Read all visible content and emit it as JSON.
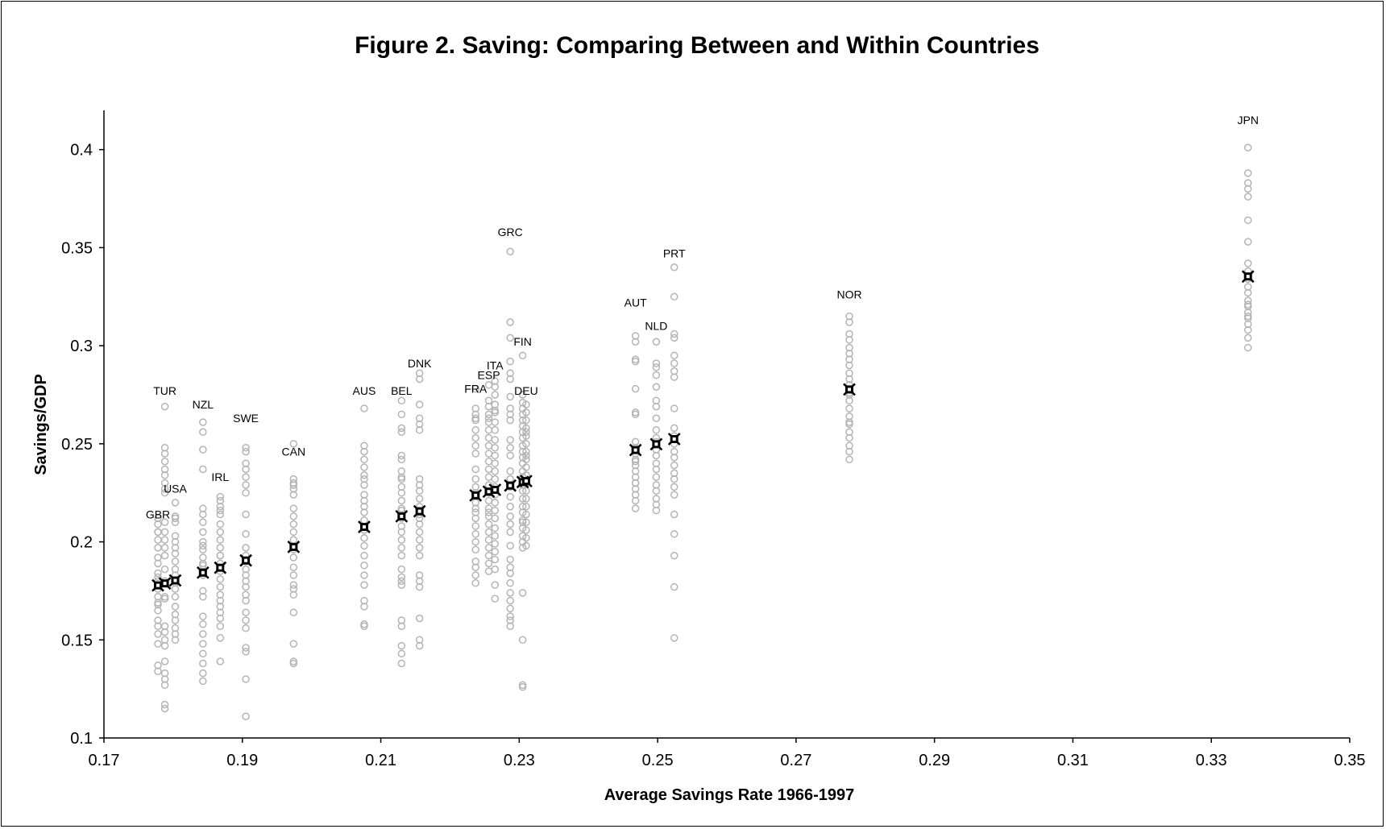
{
  "chart_data": {
    "type": "scatter",
    "title": "Figure 2. Saving: Comparing Between and Within Countries",
    "xlabel": "Average Savings Rate 1966-1997",
    "ylabel": "Savings/GDP",
    "xlim": [
      0.17,
      0.35
    ],
    "ylim": [
      0.1,
      0.42
    ],
    "x_ticks": [
      "0.17",
      "0.19",
      "0.21",
      "0.23",
      "0.25",
      "0.27",
      "0.29",
      "0.31",
      "0.33",
      "0.35"
    ],
    "y_ticks": [
      "0.1",
      "0.15",
      "0.2",
      "0.25",
      "0.3",
      "0.35",
      "0.4"
    ],
    "grid": false,
    "legend": "none",
    "colors": {
      "annual": "#b4b4b4",
      "average": "#000000",
      "axis": "#000000"
    },
    "countries": [
      {
        "code": "GBR",
        "avg": 0.1778,
        "label_y": 0.212,
        "years": [
          0.212,
          0.209,
          0.205,
          0.201,
          0.197,
          0.192,
          0.189,
          0.184,
          0.18,
          0.176,
          0.172,
          0.169,
          0.165,
          0.16,
          0.157,
          0.153,
          0.148,
          0.137,
          0.134,
          0.168,
          0.182,
          0.205
        ]
      },
      {
        "code": "TUR",
        "avg": 0.1788,
        "label_y": 0.275,
        "years": [
          0.269,
          0.248,
          0.245,
          0.241,
          0.237,
          0.234,
          0.23,
          0.227,
          0.21,
          0.205,
          0.201,
          0.197,
          0.193,
          0.186,
          0.18,
          0.171,
          0.157,
          0.154,
          0.15,
          0.147,
          0.139,
          0.133,
          0.13,
          0.127,
          0.117,
          0.115,
          0.172,
          0.225
        ]
      },
      {
        "code": "USA",
        "avg": 0.1803,
        "label_y": 0.225,
        "years": [
          0.22,
          0.213,
          0.21,
          0.2,
          0.197,
          0.194,
          0.19,
          0.186,
          0.183,
          0.176,
          0.172,
          0.167,
          0.163,
          0.16,
          0.156,
          0.153,
          0.15,
          0.212,
          0.203,
          0.179
        ]
      },
      {
        "code": "NZL",
        "avg": 0.1843,
        "label_y": 0.268,
        "years": [
          0.261,
          0.256,
          0.247,
          0.237,
          0.217,
          0.214,
          0.21,
          0.205,
          0.2,
          0.196,
          0.192,
          0.188,
          0.183,
          0.175,
          0.172,
          0.162,
          0.158,
          0.153,
          0.148,
          0.143,
          0.138,
          0.133,
          0.129,
          0.198,
          0.189
        ]
      },
      {
        "code": "IRL",
        "avg": 0.1868,
        "label_y": 0.231,
        "years": [
          0.223,
          0.221,
          0.218,
          0.214,
          0.209,
          0.205,
          0.201,
          0.197,
          0.193,
          0.189,
          0.185,
          0.181,
          0.177,
          0.173,
          0.17,
          0.167,
          0.164,
          0.161,
          0.157,
          0.151,
          0.139,
          0.216,
          0.193
        ]
      },
      {
        "code": "SWE",
        "avg": 0.1905,
        "label_y": 0.261,
        "years": [
          0.248,
          0.246,
          0.24,
          0.237,
          0.233,
          0.229,
          0.214,
          0.204,
          0.197,
          0.193,
          0.19,
          0.186,
          0.183,
          0.18,
          0.177,
          0.173,
          0.17,
          0.164,
          0.16,
          0.156,
          0.146,
          0.144,
          0.13,
          0.111,
          0.225
        ]
      },
      {
        "code": "CAN",
        "avg": 0.1974,
        "label_y": 0.244,
        "years": [
          0.25,
          0.232,
          0.23,
          0.227,
          0.224,
          0.217,
          0.213,
          0.209,
          0.205,
          0.201,
          0.196,
          0.192,
          0.187,
          0.183,
          0.178,
          0.173,
          0.164,
          0.148,
          0.139,
          0.138,
          0.229,
          0.176
        ]
      },
      {
        "code": "AUS",
        "avg": 0.2076,
        "label_y": 0.275,
        "years": [
          0.268,
          0.249,
          0.246,
          0.242,
          0.238,
          0.234,
          0.229,
          0.224,
          0.221,
          0.218,
          0.215,
          0.211,
          0.206,
          0.202,
          0.198,
          0.193,
          0.188,
          0.183,
          0.178,
          0.17,
          0.167,
          0.158,
          0.157,
          0.232
        ]
      },
      {
        "code": "BEL",
        "avg": 0.213,
        "label_y": 0.275,
        "years": [
          0.272,
          0.265,
          0.258,
          0.256,
          0.244,
          0.242,
          0.236,
          0.232,
          0.228,
          0.225,
          0.221,
          0.217,
          0.212,
          0.208,
          0.205,
          0.201,
          0.197,
          0.193,
          0.186,
          0.182,
          0.178,
          0.16,
          0.157,
          0.147,
          0.143,
          0.138,
          0.233,
          0.216,
          0.18
        ]
      },
      {
        "code": "DNK",
        "avg": 0.2156,
        "label_y": 0.289,
        "years": [
          0.286,
          0.283,
          0.27,
          0.263,
          0.26,
          0.257,
          0.232,
          0.229,
          0.226,
          0.222,
          0.218,
          0.214,
          0.209,
          0.205,
          0.201,
          0.197,
          0.193,
          0.183,
          0.18,
          0.177,
          0.161,
          0.15,
          0.147,
          0.212
        ]
      },
      {
        "code": "FRA",
        "avg": 0.2237,
        "label_y": 0.276,
        "years": [
          0.278,
          0.268,
          0.265,
          0.262,
          0.257,
          0.253,
          0.249,
          0.245,
          0.237,
          0.232,
          0.228,
          0.225,
          0.22,
          0.217,
          0.212,
          0.208,
          0.204,
          0.2,
          0.196,
          0.19,
          0.187,
          0.183,
          0.179,
          0.263,
          0.215
        ]
      },
      {
        "code": "ESP",
        "avg": 0.2256,
        "label_y": 0.283,
        "years": [
          0.28,
          0.272,
          0.269,
          0.265,
          0.261,
          0.257,
          0.253,
          0.249,
          0.245,
          0.241,
          0.237,
          0.233,
          0.229,
          0.225,
          0.221,
          0.217,
          0.213,
          0.209,
          0.205,
          0.201,
          0.197,
          0.193,
          0.189,
          0.185,
          0.263,
          0.215
        ]
      },
      {
        "code": "ITA",
        "avg": 0.2265,
        "label_y": 0.288,
        "years": [
          0.282,
          0.279,
          0.275,
          0.27,
          0.266,
          0.261,
          0.257,
          0.252,
          0.248,
          0.244,
          0.24,
          0.236,
          0.232,
          0.228,
          0.224,
          0.22,
          0.216,
          0.212,
          0.207,
          0.203,
          0.199,
          0.195,
          0.191,
          0.186,
          0.178,
          0.171,
          0.267
        ]
      },
      {
        "code": "GRC",
        "avg": 0.2287,
        "label_y": 0.356,
        "years": [
          0.348,
          0.312,
          0.304,
          0.292,
          0.286,
          0.283,
          0.274,
          0.268,
          0.265,
          0.262,
          0.248,
          0.244,
          0.236,
          0.232,
          0.228,
          0.223,
          0.218,
          0.213,
          0.209,
          0.205,
          0.198,
          0.191,
          0.187,
          0.184,
          0.179,
          0.174,
          0.17,
          0.166,
          0.162,
          0.157,
          0.16,
          0.252
        ]
      },
      {
        "code": "FIN",
        "avg": 0.2305,
        "label_y": 0.3,
        "years": [
          0.295,
          0.275,
          0.271,
          0.268,
          0.265,
          0.262,
          0.259,
          0.256,
          0.253,
          0.249,
          0.246,
          0.243,
          0.24,
          0.236,
          0.233,
          0.229,
          0.226,
          0.222,
          0.218,
          0.215,
          0.211,
          0.207,
          0.203,
          0.2,
          0.197,
          0.174,
          0.15,
          0.127,
          0.126,
          0.21
        ]
      },
      {
        "code": "DEU",
        "avg": 0.231,
        "label_y": 0.275,
        "years": [
          0.27,
          0.266,
          0.262,
          0.258,
          0.254,
          0.25,
          0.246,
          0.242,
          0.238,
          0.234,
          0.23,
          0.226,
          0.222,
          0.218,
          0.214,
          0.21,
          0.206,
          0.202,
          0.198,
          0.244,
          0.256
        ]
      },
      {
        "code": "AUT",
        "avg": 0.2468,
        "label_y": 0.32,
        "years": [
          0.305,
          0.302,
          0.293,
          0.292,
          0.278,
          0.266,
          0.265,
          0.251,
          0.248,
          0.245,
          0.242,
          0.239,
          0.236,
          0.233,
          0.23,
          0.227,
          0.224,
          0.221,
          0.217,
          0.241,
          0.23
        ]
      },
      {
        "code": "NLD",
        "avg": 0.2498,
        "label_y": 0.308,
        "years": [
          0.302,
          0.291,
          0.289,
          0.285,
          0.279,
          0.272,
          0.263,
          0.257,
          0.251,
          0.247,
          0.244,
          0.24,
          0.237,
          0.233,
          0.229,
          0.226,
          0.222,
          0.219,
          0.216,
          0.269,
          0.253
        ]
      },
      {
        "code": "PRT",
        "avg": 0.2524,
        "label_y": 0.345,
        "years": [
          0.34,
          0.325,
          0.306,
          0.304,
          0.295,
          0.291,
          0.287,
          0.284,
          0.268,
          0.258,
          0.254,
          0.25,
          0.246,
          0.243,
          0.239,
          0.235,
          0.232,
          0.228,
          0.224,
          0.214,
          0.204,
          0.193,
          0.177,
          0.151
        ]
      },
      {
        "code": "NOR",
        "avg": 0.2777,
        "label_y": 0.324,
        "years": [
          0.315,
          0.312,
          0.306,
          0.303,
          0.299,
          0.296,
          0.293,
          0.29,
          0.286,
          0.283,
          0.28,
          0.276,
          0.272,
          0.268,
          0.264,
          0.26,
          0.256,
          0.253,
          0.249,
          0.246,
          0.242,
          0.275,
          0.261
        ]
      },
      {
        "code": "JPN",
        "avg": 0.3353,
        "label_y": 0.413,
        "years": [
          0.401,
          0.388,
          0.383,
          0.38,
          0.376,
          0.364,
          0.353,
          0.342,
          0.338,
          0.334,
          0.33,
          0.327,
          0.323,
          0.32,
          0.317,
          0.314,
          0.311,
          0.308,
          0.304,
          0.299,
          0.321,
          0.315
        ]
      }
    ]
  }
}
